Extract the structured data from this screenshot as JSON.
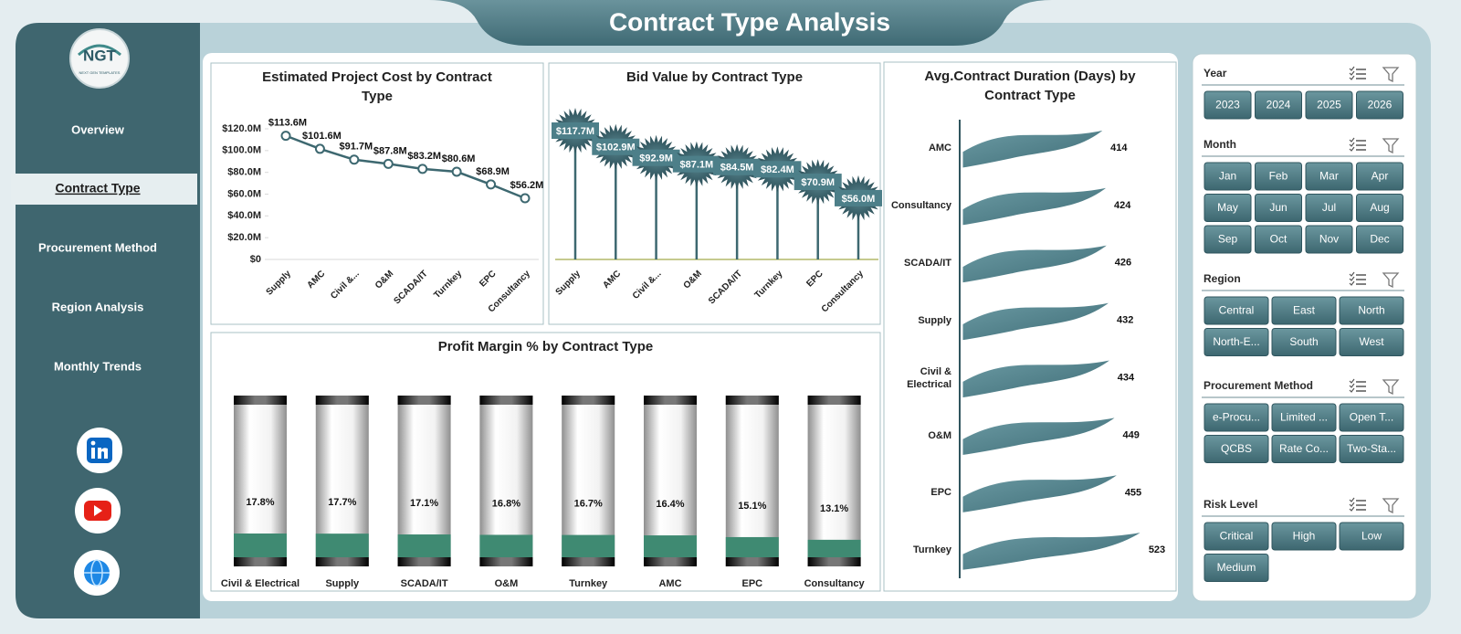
{
  "header": {
    "title": "Contract Type Analysis"
  },
  "logo": {
    "text": "NGT",
    "subtitle": "NEXT GEN TEMPLATES"
  },
  "nav": {
    "items": [
      "Overview",
      "Contract Type",
      "Procurement Method",
      "Region Analysis",
      "Monthly Trends"
    ]
  },
  "slicers": [
    {
      "title": "Year",
      "items": [
        "2023",
        "2024",
        "2025",
        "2026"
      ]
    },
    {
      "title": "Month",
      "items": [
        "Jan",
        "Feb",
        "Mar",
        "Apr",
        "May",
        "Jun",
        "Jul",
        "Aug",
        "Sep",
        "Oct",
        "Nov",
        "Dec"
      ]
    },
    {
      "title": "Region",
      "items": [
        "Central",
        "East",
        "North",
        "North-E...",
        "South",
        "West"
      ]
    },
    {
      "title": "Procurement Method",
      "items": [
        "e-Procu...",
        "Limited ...",
        "Open T...",
        "QCBS",
        "Rate Co...",
        "Two-Sta..."
      ]
    },
    {
      "title": "Risk Level",
      "items": [
        "Critical",
        "High",
        "Low",
        "Medium"
      ]
    }
  ],
  "chart_data": [
    {
      "type": "line",
      "title": "Estimated Project Cost by Contract Type",
      "categories": [
        "Supply",
        "AMC",
        "Civil &...",
        "O&M",
        "SCADA/IT",
        "Turnkey",
        "EPC",
        "Consultancy"
      ],
      "values": [
        113.6,
        101.6,
        91.7,
        87.8,
        83.2,
        80.6,
        68.9,
        56.2
      ],
      "value_labels": [
        "$113.6M",
        "$101.6M",
        "$91.7M",
        "$87.8M",
        "$83.2M",
        "$80.6M",
        "$68.9M",
        "$56.2M"
      ],
      "color": "#3d6870",
      "ylim": [
        0,
        120
      ],
      "yticks": [
        {
          "value": 0,
          "label": "$0"
        },
        {
          "value": 20,
          "label": "$20.0M"
        },
        {
          "value": 40,
          "label": "$40.0M"
        },
        {
          "value": 60,
          "label": "$60.0M"
        },
        {
          "value": 80,
          "label": "$80.0M"
        },
        {
          "value": 100,
          "label": "$100.0M"
        },
        {
          "value": 120,
          "label": "$120.0M"
        }
      ]
    },
    {
      "type": "lollipop",
      "title": "Bid Value by Contract Type",
      "categories": [
        "Supply",
        "AMC",
        "Civil &...",
        "O&M",
        "SCADA/IT",
        "Turnkey",
        "EPC",
        "Consultancy"
      ],
      "values": [
        117.7,
        102.9,
        92.9,
        87.1,
        84.5,
        82.4,
        70.9,
        56.0
      ],
      "value_labels": [
        "$117.7M",
        "$102.9M",
        "$92.9M",
        "$87.1M",
        "$84.5M",
        "$82.4M",
        "$70.9M",
        "$56.0M"
      ],
      "color": "#3d6870"
    },
    {
      "type": "cylinder",
      "title": "Profit Margin % by Contract Type",
      "categories": [
        "Civil & Electrical",
        "Supply",
        "SCADA/IT",
        "O&M",
        "Turnkey",
        "AMC",
        "EPC",
        "Consultancy"
      ],
      "values": [
        17.8,
        17.7,
        17.1,
        16.8,
        16.7,
        16.4,
        15.1,
        13.1
      ],
      "value_labels": [
        "17.8%",
        "17.7%",
        "17.1%",
        "16.8%",
        "16.7%",
        "16.4%",
        "15.1%",
        "13.1%"
      ],
      "color": "#3f8a72"
    },
    {
      "type": "flag",
      "title": "Avg.Contract Duration (Days) by Contract Type",
      "categories": [
        "AMC",
        "Consultancy",
        "SCADA/IT",
        "Supply",
        "Civil & Electrical",
        "O&M",
        "EPC",
        "Turnkey"
      ],
      "values": [
        414,
        424,
        426,
        432,
        434,
        449,
        455,
        523
      ],
      "color": "#4d7f89"
    }
  ]
}
